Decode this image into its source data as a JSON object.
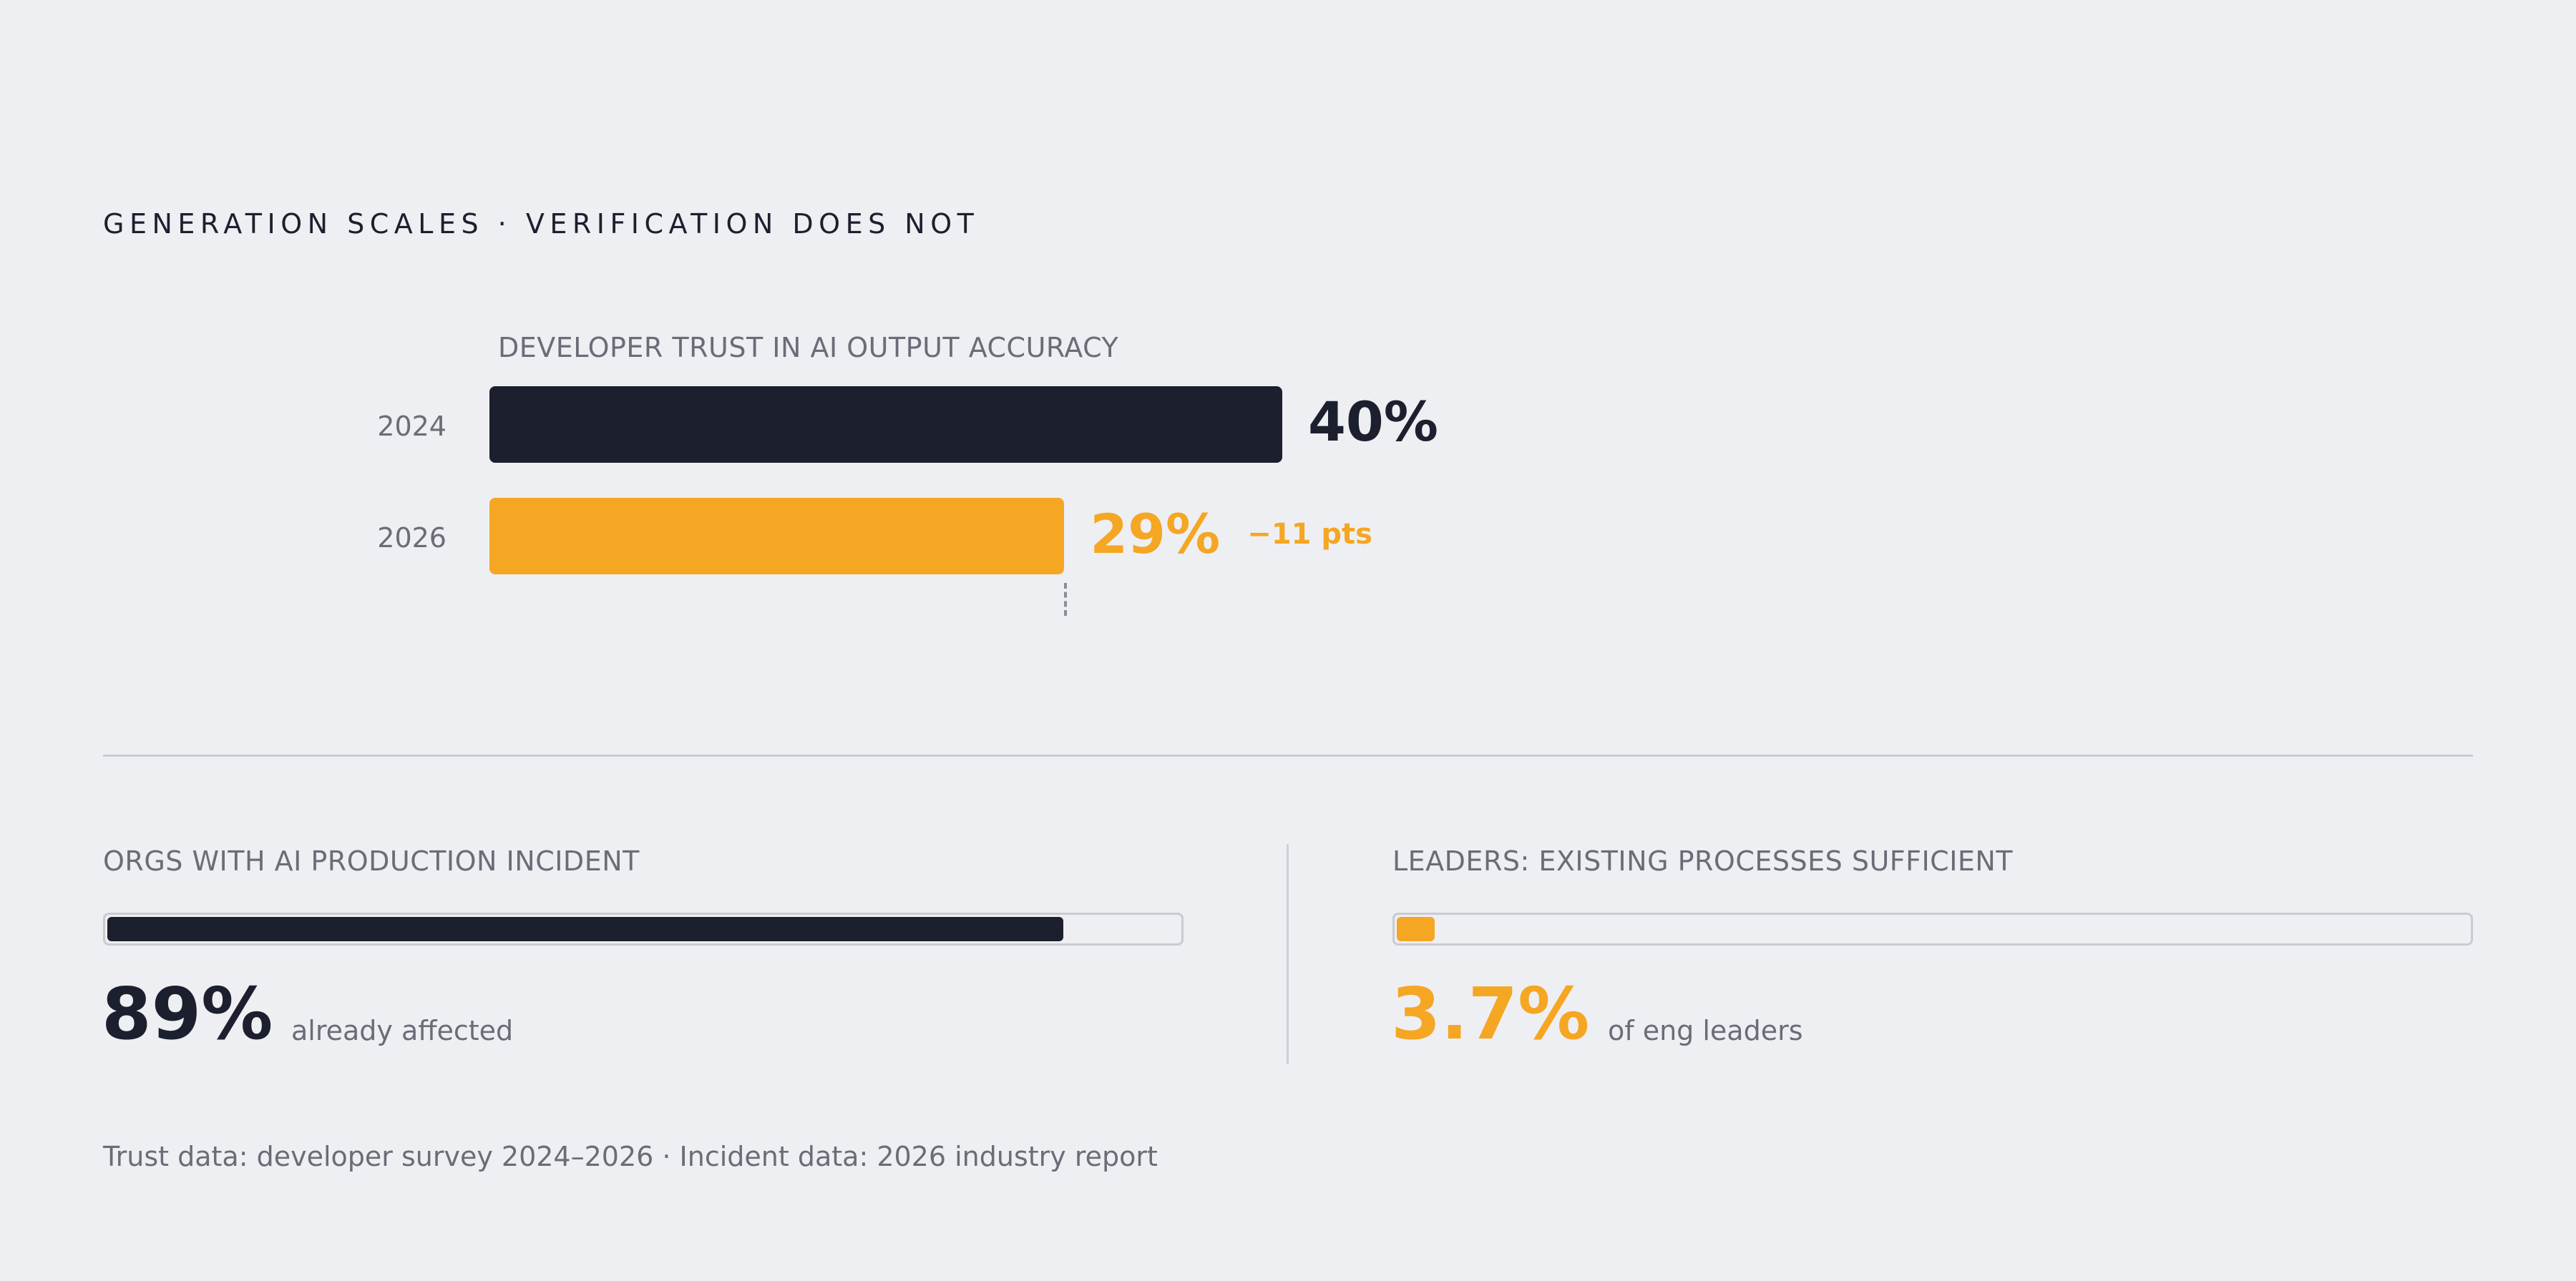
{
  "header": {
    "kicker": "GENERATION SCALES · VERIFICATION DOES NOT"
  },
  "colors": {
    "dark": "#1c1f2e",
    "accent": "#f5a623",
    "muted": "#6a6d78",
    "background": "#eeeff2"
  },
  "chart_data": [
    {
      "type": "bar",
      "orientation": "horizontal",
      "title": "DEVELOPER TRUST IN AI OUTPUT ACCURACY",
      "categories": [
        "2024",
        "2026"
      ],
      "values": [
        40,
        29
      ],
      "value_labels": [
        "40%",
        "29%"
      ],
      "bar_colors": [
        "#1c1f2e",
        "#f5a623"
      ],
      "annotation": "−11 pts",
      "xlim": [
        0,
        40
      ],
      "grid": false,
      "unit": "%"
    },
    {
      "type": "bar",
      "title": "ORGS WITH AI PRODUCTION INCIDENT",
      "values": [
        89
      ],
      "value_label": "89%",
      "caption": "already affected",
      "xlim": [
        0,
        100
      ],
      "color": "#1c1f2e"
    },
    {
      "type": "bar",
      "title": "LEADERS: EXISTING PROCESSES SUFFICIENT",
      "values": [
        3.7
      ],
      "value_label": "3.7%",
      "caption": "of eng leaders",
      "xlim": [
        0,
        100
      ],
      "color": "#f5a623"
    }
  ],
  "footnote": "Trust data: developer survey 2024–2026 · Incident data: 2026 industry report"
}
